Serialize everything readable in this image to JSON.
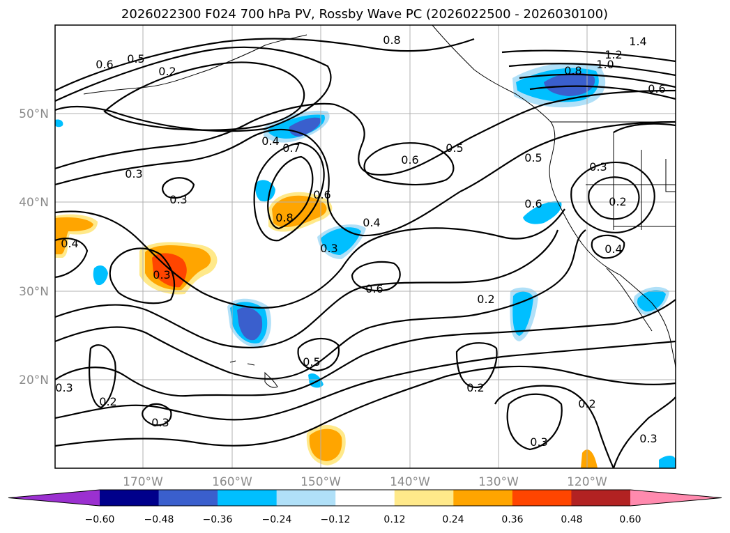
{
  "title": "2026022300 F024 700 hPa PV, Rossby Wave PC (2026022500 - 2026030100)",
  "lon_ticks": [
    "170°W",
    "160°W",
    "150°W",
    "140°W",
    "130°W",
    "120°W"
  ],
  "lat_ticks": [
    "50°N",
    "40°N",
    "30°N",
    "20°N"
  ],
  "contour_labels": [
    "0.6",
    "0.5",
    "0.2",
    "0.8",
    "1.2",
    "1.0",
    "0.8",
    "1.4",
    "0.6",
    "0.4",
    "0.7",
    "0.3",
    "0.3",
    "0.6",
    "0.5",
    "0.6",
    "0.8",
    "0.4",
    "0.3",
    "0.4",
    "0.3",
    "0.6",
    "0.5",
    "0.6",
    "0.3",
    "0.2",
    "0.4",
    "0.2",
    "0.5",
    "0.3",
    "0.2",
    "0.2",
    "0.3",
    "0.2",
    "0.3",
    "0.3"
  ],
  "colorbar": {
    "ticks": [
      "−0.60",
      "−0.48",
      "−0.36",
      "−0.24",
      "−0.12",
      "0.12",
      "0.24",
      "0.36",
      "0.48",
      "0.60"
    ],
    "colors": [
      "#9b30d0",
      "#00008b",
      "#3a5fcd",
      "#00bfff",
      "#b0e0f8",
      "#ffffff",
      "#ffe98a",
      "#ffa500",
      "#ff4500",
      "#b22222",
      "#ff8aae"
    ]
  },
  "chart_data": {
    "type": "contour_map",
    "field": "700 hPa PV",
    "shading": "Rossby Wave PC",
    "init": "2026022300",
    "forecast_hour": "F024",
    "period": "2026022500 - 2026030100",
    "lon_range": [
      -180,
      -110
    ],
    "lat_range": [
      10,
      60
    ],
    "contour_levels": [
      0.2,
      0.3,
      0.4,
      0.5,
      0.6,
      0.7,
      0.8,
      1.0,
      1.2,
      1.4
    ],
    "shading_levels": [
      -0.6,
      -0.48,
      -0.36,
      -0.24,
      -0.12,
      0.12,
      0.24,
      0.36,
      0.48,
      0.6
    ]
  }
}
